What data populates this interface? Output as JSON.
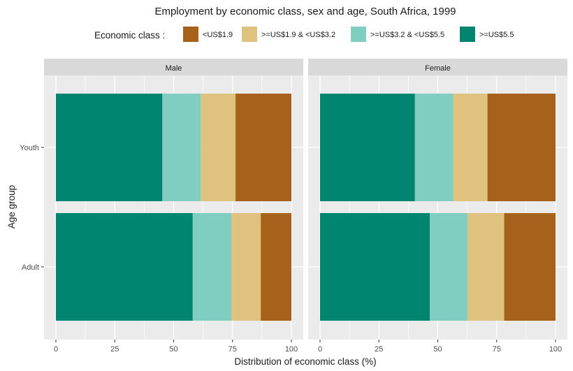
{
  "chart_data": {
    "type": "bar",
    "orientation": "horizontal",
    "stacked": true,
    "title": "Employment by economic class, sex and age, South Africa, 1999",
    "xlabel": "Distribution of economic class (%)",
    "ylabel": "Age group",
    "xlim": [
      0,
      100
    ],
    "xticks": [
      "0",
      "25",
      "50",
      "75",
      "100"
    ],
    "grid": true,
    "legend": {
      "title": "Economic class :",
      "placement": "top",
      "entries": [
        "<US$1.9",
        ">=US$1.9 & <US$3.2",
        ">=US$3.2 & <US$5.5",
        ">=US$5.5"
      ]
    },
    "categories": [
      "Youth",
      "Adult"
    ],
    "facets": [
      {
        "label": "Male",
        "series": [
          {
            "name": ">=US$5.5",
            "color": "#018571",
            "values": [
              45.2,
              58.1
            ]
          },
          {
            "name": ">=US$3.2 & <US$5.5",
            "color": "#80cdc1",
            "values": [
              16.3,
              16.4
            ]
          },
          {
            "name": ">=US$1.9 & <US$3.2",
            "color": "#dfc27d",
            "values": [
              14.8,
              12.5
            ]
          },
          {
            "name": "<US$1.9",
            "color": "#a6611a",
            "values": [
              23.7,
              13.0
            ]
          }
        ]
      },
      {
        "label": "Female",
        "series": [
          {
            "name": ">=US$5.5",
            "color": "#018571",
            "values": [
              40.3,
              46.6
            ]
          },
          {
            "name": ">=US$3.2 & <US$5.5",
            "color": "#80cdc1",
            "values": [
              16.3,
              16.0
            ]
          },
          {
            "name": ">=US$1.9 & <US$3.2",
            "color": "#dfc27d",
            "values": [
              14.5,
              15.6
            ]
          },
          {
            "name": "<US$1.9",
            "color": "#a6611a",
            "values": [
              28.9,
              21.8
            ]
          }
        ]
      }
    ]
  },
  "colors": {
    "<US$1.9": "#a6611a",
    ">=US$1.9 & <US$3.2": "#dfc27d",
    ">=US$3.2 & <US$5.5": "#80cdc1",
    ">=US$5.5": "#018571",
    "panel_background": "#ebebeb",
    "strip_background": "#d9d9d9",
    "grid": "#ffffff"
  }
}
